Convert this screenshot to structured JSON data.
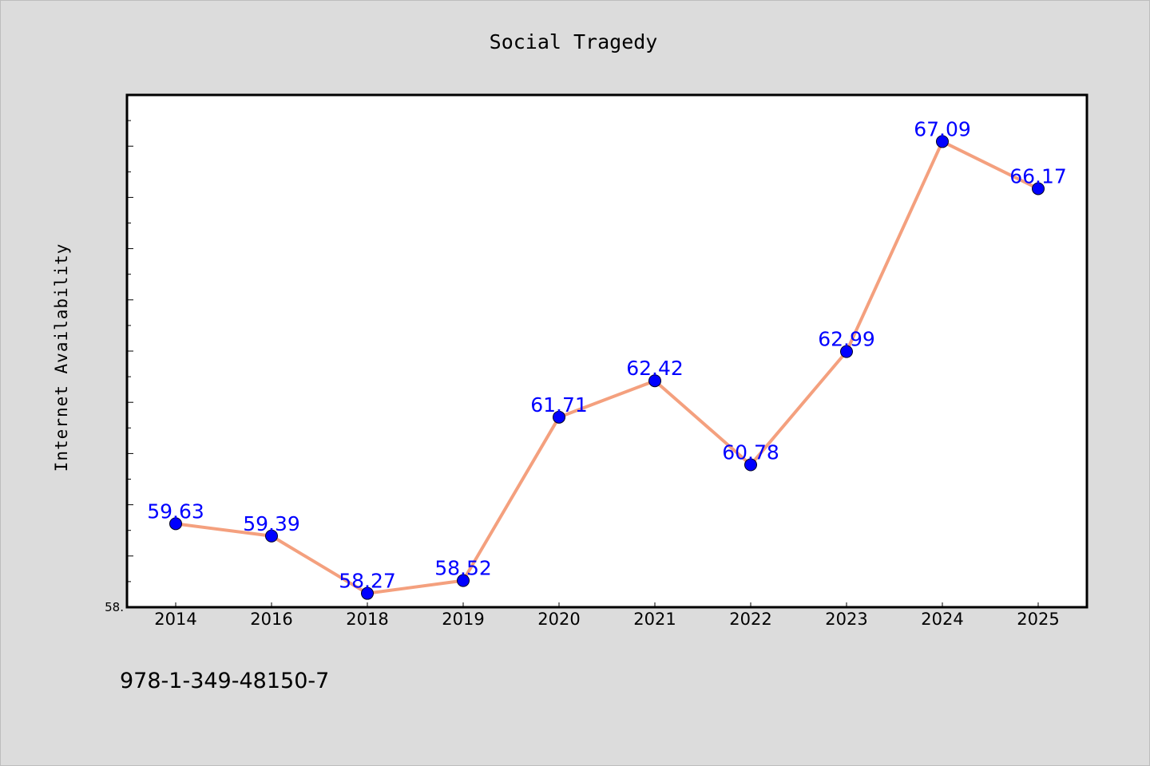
{
  "chart_data": {
    "type": "line",
    "title": "Social Tragedy",
    "xlabel": "",
    "ylabel": "Internet Availability",
    "categories": [
      "2014",
      "2016",
      "2018",
      "2019",
      "2020",
      "2021",
      "2022",
      "2023",
      "2024",
      "2025"
    ],
    "series": [
      {
        "values": [
          59.63,
          59.39,
          58.27,
          58.52,
          61.71,
          62.42,
          60.78,
          62.99,
          67.09,
          66.17
        ],
        "labels": [
          "59.63",
          "59.39",
          "58.27",
          "58.52",
          "61.71",
          "62.42",
          "60.78",
          "62.99",
          "67.09",
          "66.17"
        ]
      }
    ],
    "ylim": [
      58.0,
      68.0
    ],
    "y_tick_labels": [
      "58."
    ],
    "grid": false,
    "legend": "none",
    "colors": {
      "line": "#f4a07e",
      "marker": "#0000ff",
      "data_label": "#0000ff",
      "plot_background": "#ffffff",
      "figure_background": "#dcdcdc"
    }
  },
  "footnote": "978-1-349-48150-7"
}
